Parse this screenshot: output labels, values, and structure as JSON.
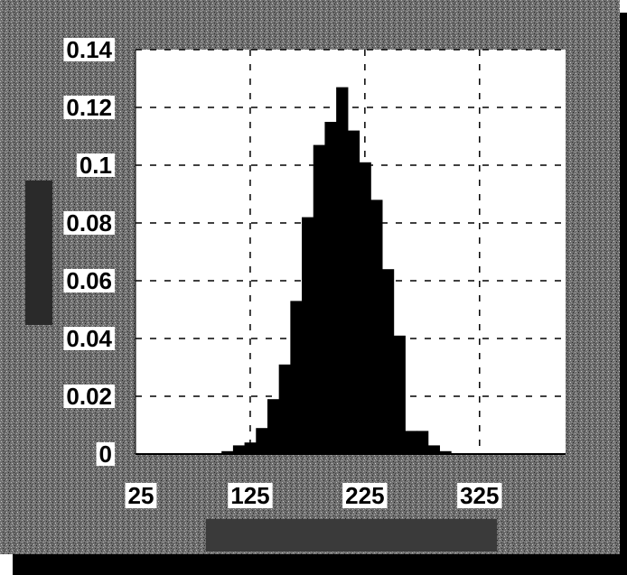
{
  "colors": {
    "panel": "#6f6f6f",
    "panel_dark": "#3a3a3a",
    "plot_background": "#ffffff",
    "bars": "#000000",
    "grid": "#000000",
    "label_background": "#ffffff"
  },
  "chart_data": {
    "type": "bar",
    "title": "",
    "xlabel": "",
    "ylabel": "",
    "xlim": [
      25,
      400
    ],
    "ylim": [
      0,
      0.14
    ],
    "grid": true,
    "grid_style": "dashed",
    "legend": "none",
    "x_ticks": [
      25,
      125,
      225,
      325
    ],
    "x_tick_labels": [
      "25",
      "125",
      "225",
      "325"
    ],
    "y_ticks": [
      0,
      0.02,
      0.04,
      0.06,
      0.08,
      0.1,
      0.12,
      0.14
    ],
    "y_tick_labels": [
      "0",
      "0.02",
      "0.04",
      "0.06",
      "0.08",
      "0.1",
      "0.12",
      "0.14"
    ],
    "bin_width": 10,
    "x": [
      105,
      115,
      125,
      135,
      145,
      155,
      165,
      175,
      185,
      195,
      205,
      215,
      225,
      235,
      245,
      255,
      265,
      275,
      285,
      295
    ],
    "values": [
      0.001,
      0.003,
      0.004,
      0.009,
      0.019,
      0.031,
      0.053,
      0.082,
      0.107,
      0.115,
      0.127,
      0.112,
      0.101,
      0.088,
      0.064,
      0.041,
      0.008,
      0.008,
      0.003,
      0.001
    ]
  }
}
